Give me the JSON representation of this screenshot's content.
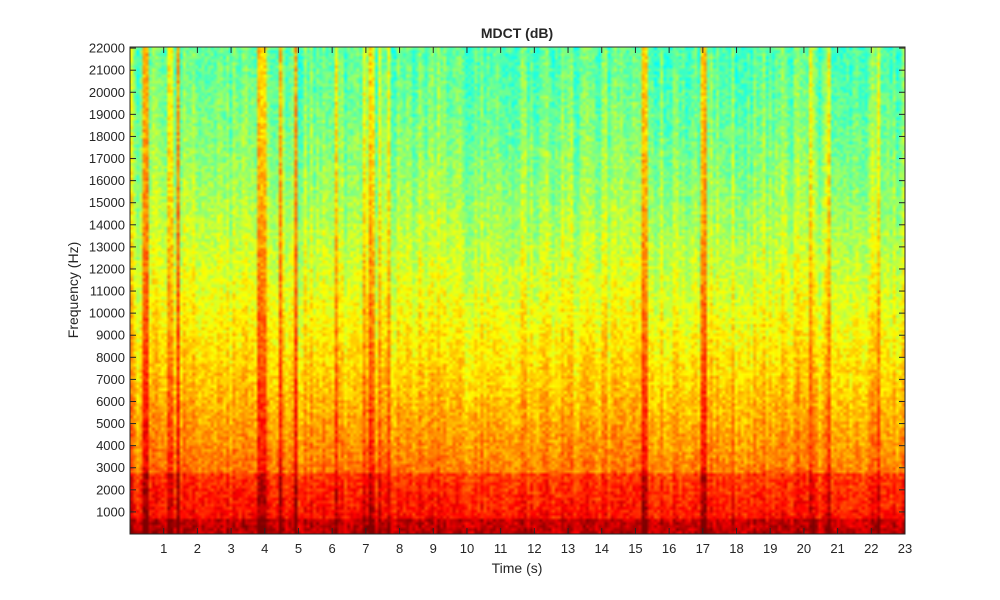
{
  "chart_data": {
    "type": "heatmap",
    "title": "MDCT (dB)",
    "xlabel": "Time (s)",
    "ylabel": "Frequency (Hz)",
    "xlim": [
      0,
      23
    ],
    "ylim": [
      0,
      22050
    ],
    "x_ticks": [
      1,
      2,
      3,
      4,
      5,
      6,
      7,
      8,
      9,
      10,
      11,
      12,
      13,
      14,
      15,
      16,
      17,
      18,
      19,
      20,
      21,
      22,
      23
    ],
    "y_ticks": [
      1000,
      2000,
      3000,
      4000,
      5000,
      6000,
      7000,
      8000,
      9000,
      10000,
      11000,
      12000,
      13000,
      14000,
      15000,
      16000,
      17000,
      18000,
      19000,
      20000,
      21000,
      22000
    ],
    "colormap": "jet",
    "colormap_stops": [
      "#00007f",
      "#0000ff",
      "#0080ff",
      "#00ffff",
      "#80ff80",
      "#ffff00",
      "#ff8000",
      "#ff0000",
      "#7f0000"
    ],
    "background_color": "#ffffff",
    "grid": false
  }
}
